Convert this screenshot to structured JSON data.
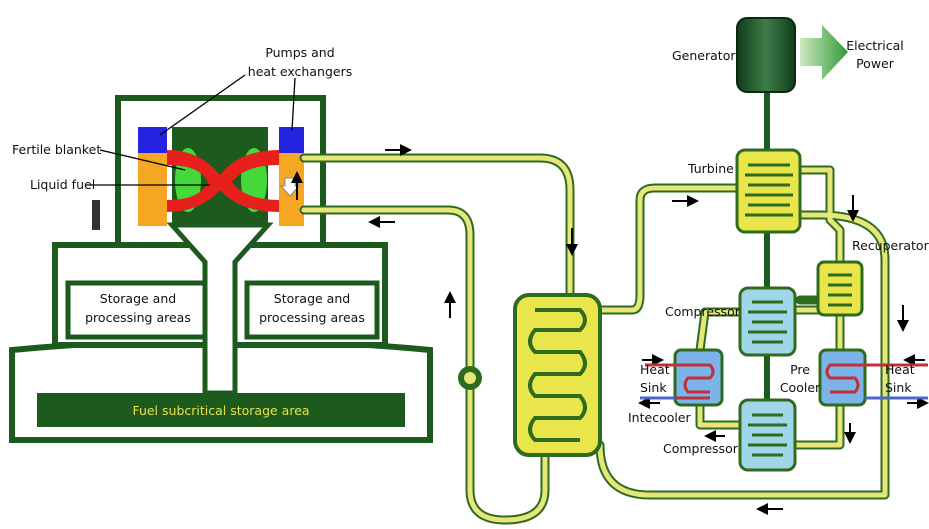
{
  "reactor": {
    "pumps_label": [
      "Pumps and",
      "heat exchangers"
    ],
    "blanket_label": "Fertile blanket",
    "fuel_label": "Liquid fuel",
    "storage_left": [
      "Storage and",
      "processing areas"
    ],
    "storage_right": [
      "Storage and",
      "processing areas"
    ],
    "subcritical": "Fuel subcritical storage area"
  },
  "power_cycle": {
    "generator": "Generator",
    "output": [
      "Electrical",
      "Power"
    ],
    "turbine": "Turbine",
    "recuperator": "Recuperator",
    "compressor_top": "Compressor",
    "compressor_bottom": "Compressor",
    "heat_sink_left": [
      "Heat",
      "Sink"
    ],
    "heat_sink_right": [
      "Heat",
      "Sink"
    ],
    "precooler": [
      "Pre",
      "Cooler"
    ],
    "intercooler": "Intecooler"
  }
}
